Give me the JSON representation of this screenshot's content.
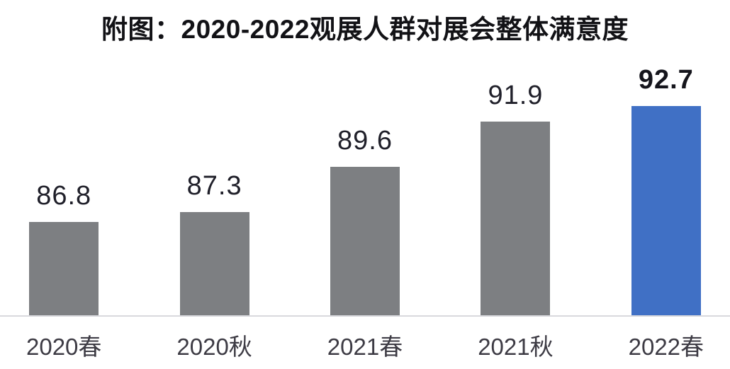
{
  "chart_data": {
    "type": "bar",
    "title": "附图：2020-2022观展人群对展会整体满意度",
    "categories": [
      "2020春",
      "2020秋",
      "2021春",
      "2021秋",
      "2022春"
    ],
    "values": [
      86.8,
      87.3,
      89.6,
      91.9,
      92.7
    ],
    "value_labels": [
      "86.8",
      "87.3",
      "89.6",
      "91.9",
      "92.7"
    ],
    "highlight_index": 4,
    "xlabel": "",
    "ylabel": "",
    "ylim": [
      82,
      95
    ],
    "grid": false,
    "legend": false,
    "colors": {
      "bar_default": "#7d7f82",
      "bar_highlight": "#4070c5",
      "title": "#121216",
      "value_label": "#20202a",
      "category_label": "#3d3b44",
      "axis_line": "#d9d9dd",
      "background": "#ffffff"
    }
  }
}
